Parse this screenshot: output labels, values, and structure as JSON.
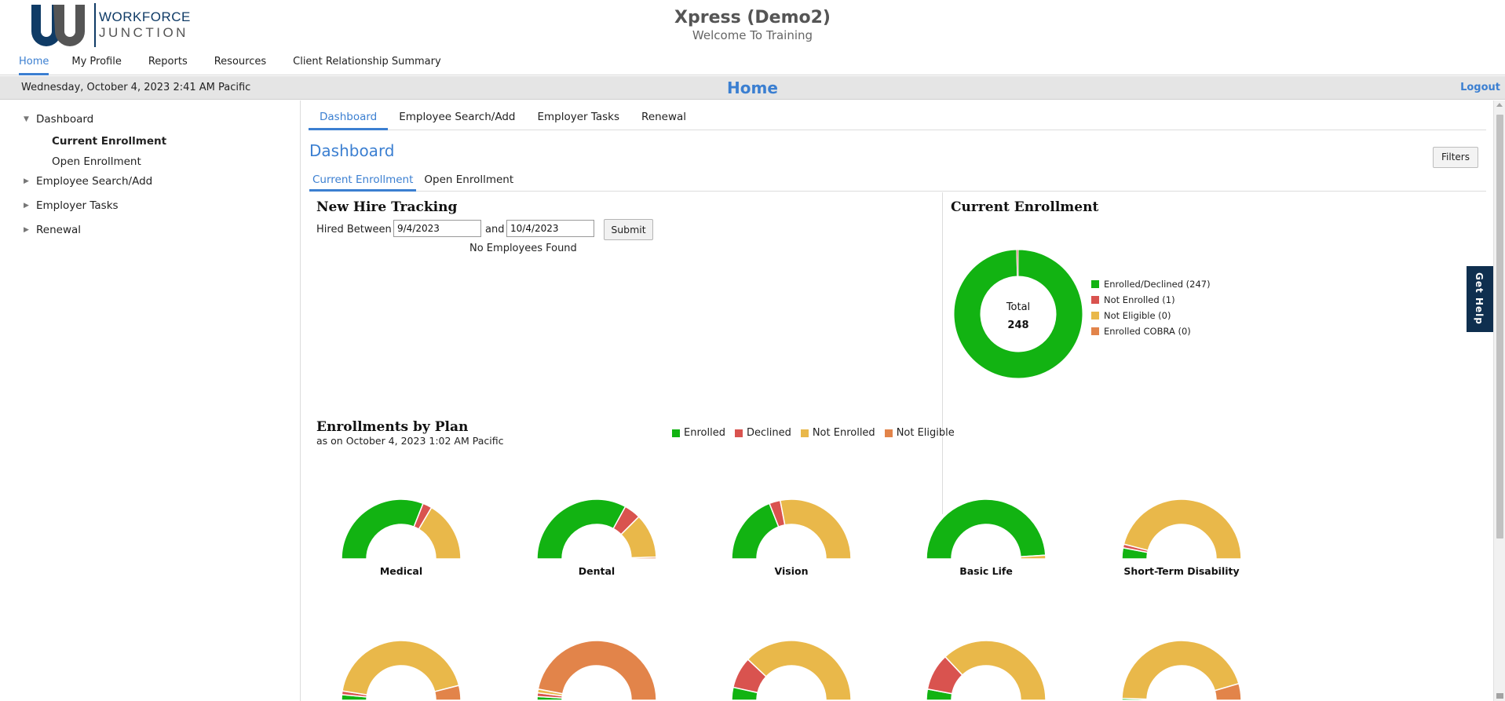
{
  "brand": {
    "line1": "WORKFORCE",
    "line2": "JUNCTION",
    "colors": {
      "primary": "#0f3b66",
      "secondary": "#555555"
    }
  },
  "header": {
    "title": "Xpress (Demo2)",
    "subtitle": "Welcome To Training"
  },
  "topnav": {
    "items": [
      {
        "label": "Home",
        "active": true
      },
      {
        "label": "My Profile"
      },
      {
        "label": "Reports"
      },
      {
        "label": "Resources"
      },
      {
        "label": "Client Relationship Summary"
      }
    ]
  },
  "statusbar": {
    "datetime": "Wednesday, October 4, 2023 2:41 AM Pacific",
    "page_title": "Home",
    "logout_label": "Logout"
  },
  "sidebar": {
    "items": [
      {
        "label": "Dashboard",
        "expanded": true,
        "icon": "caret-down-icon"
      },
      {
        "label": "Current Enrollment",
        "active": true
      },
      {
        "label": "Open Enrollment"
      },
      {
        "label": "Employee Search/Add",
        "icon": "caret-right-icon"
      },
      {
        "label": "Employer Tasks",
        "icon": "caret-right-icon"
      },
      {
        "label": "Renewal",
        "icon": "caret-right-icon"
      }
    ]
  },
  "main": {
    "tabs": [
      {
        "label": "Dashboard",
        "active": true
      },
      {
        "label": "Employee Search/Add"
      },
      {
        "label": "Employer Tasks"
      },
      {
        "label": "Renewal"
      }
    ],
    "title": "Dashboard",
    "filters_label": "Filters",
    "subtabs": [
      {
        "label": "Current Enrollment",
        "active": true
      },
      {
        "label": "Open Enrollment"
      }
    ]
  },
  "new_hire": {
    "title": "New Hire Tracking",
    "hired_label": "Hired Between",
    "from_value": "9/4/2023",
    "and_label": "and",
    "to_value": "10/4/2023",
    "submit_label": "Submit",
    "empty_message": "No Employees Found"
  },
  "current_enrollment": {
    "title": "Current Enrollment",
    "total_label": "Total",
    "total_value": "248",
    "legend": [
      {
        "label": "Enrolled/Declined (247)",
        "color": "#12b312"
      },
      {
        "label": "Not Enrolled (1)",
        "color": "#d9534f"
      },
      {
        "label": "Not Eligible (0)",
        "color": "#e9b84a"
      },
      {
        "label": "Enrolled COBRA (0)",
        "color": "#e2844a"
      }
    ]
  },
  "enrollments_by_plan": {
    "title": "Enrollments by Plan",
    "subtitle": "as on October 4, 2023 1:02 AM Pacific",
    "legend": [
      {
        "label": "Enrolled",
        "color": "#12b312"
      },
      {
        "label": "Declined",
        "color": "#d9534f"
      },
      {
        "label": "Not Enrolled",
        "color": "#e9b84a"
      },
      {
        "label": "Not Eligible",
        "color": "#e2844a"
      }
    ]
  },
  "get_help_label": "Get Help",
  "chart_data": [
    {
      "type": "pie",
      "title": "Current Enrollment",
      "categories": [
        "Enrolled/Declined",
        "Not Enrolled",
        "Not Eligible",
        "Enrolled COBRA"
      ],
      "values": [
        247,
        1,
        0,
        0
      ],
      "colors": [
        "#12b312",
        "#d9534f",
        "#e9b84a",
        "#e2844a"
      ],
      "center_label": "Total 248"
    },
    {
      "type": "pie",
      "style": "half-donut",
      "categories": [
        "Enrolled",
        "Declined",
        "Not Enrolled",
        "Not Eligible"
      ],
      "colors": [
        "#12b312",
        "#d9534f",
        "#e9b84a",
        "#e2844a"
      ],
      "series": [
        {
          "name": "Medical",
          "values": [
            0.62,
            0.05,
            0.33,
            0.0
          ]
        },
        {
          "name": "Dental",
          "values": [
            0.66,
            0.09,
            0.24,
            0.01
          ]
        },
        {
          "name": "Vision",
          "values": [
            0.38,
            0.06,
            0.56,
            0.0
          ]
        },
        {
          "name": "Basic Life",
          "values": [
            0.98,
            0.0,
            0.02,
            0.0
          ]
        },
        {
          "name": "Short-Term Disability",
          "values": [
            0.06,
            0.02,
            0.92,
            0.0
          ]
        },
        {
          "values": [
            0.03,
            0.02,
            0.87,
            0.08
          ]
        },
        {
          "values": [
            0.02,
            0.02,
            0.02,
            0.94
          ]
        },
        {
          "values": [
            0.07,
            0.17,
            0.76,
            0.0
          ]
        },
        {
          "values": [
            0.06,
            0.2,
            0.74,
            0.0
          ]
        },
        {
          "values": [
            0.01,
            0.0,
            0.9,
            0.09
          ]
        }
      ]
    }
  ]
}
